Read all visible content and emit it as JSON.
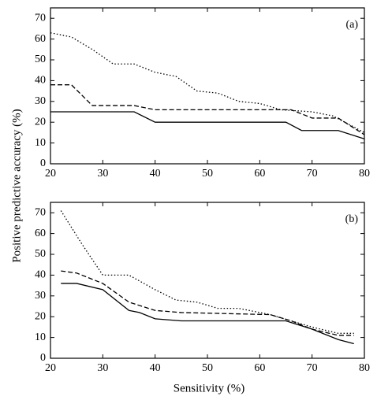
{
  "chart_data": [
    {
      "type": "line",
      "panel_label": "(a)",
      "ylabel": "Positive predictive accuracy (%)",
      "xlim": [
        20,
        80
      ],
      "ylim": [
        0,
        75
      ],
      "xticks": [
        20,
        30,
        40,
        50,
        60,
        70,
        80
      ],
      "yticks": [
        0,
        10,
        20,
        30,
        40,
        50,
        60,
        70
      ],
      "series": [
        {
          "color": "#000000",
          "dash": "solid",
          "x": [
            20,
            36,
            40,
            65,
            68,
            75,
            80
          ],
          "values": [
            25,
            25,
            20,
            20,
            16,
            16,
            12
          ]
        },
        {
          "color": "#000000",
          "dash": "dashed",
          "x": [
            20,
            24,
            28,
            36,
            40,
            66,
            70,
            75,
            80
          ],
          "values": [
            38,
            38,
            28,
            28,
            26,
            26,
            22,
            22,
            14
          ]
        },
        {
          "color": "#000000",
          "dash": "dotted",
          "x": [
            20,
            24,
            28,
            32,
            36,
            40,
            44,
            48,
            52,
            56,
            60,
            64,
            70,
            74,
            80
          ],
          "values": [
            63,
            61,
            55,
            48,
            48,
            44,
            42,
            35,
            34,
            30,
            29,
            26,
            25,
            23,
            15
          ]
        }
      ]
    },
    {
      "type": "line",
      "panel_label": "(b)",
      "xlabel": "Sensitivity (%)",
      "xlim": [
        20,
        80
      ],
      "ylim": [
        0,
        75
      ],
      "xticks": [
        20,
        30,
        40,
        50,
        60,
        70,
        80
      ],
      "yticks": [
        0,
        10,
        20,
        30,
        40,
        50,
        60,
        70
      ],
      "series": [
        {
          "color": "#000000",
          "dash": "solid",
          "x": [
            22,
            25,
            30,
            35,
            37,
            40,
            45,
            65,
            70,
            75,
            78
          ],
          "values": [
            36,
            36,
            33,
            23,
            22,
            19,
            18,
            18,
            14,
            9,
            7
          ]
        },
        {
          "color": "#000000",
          "dash": "dashed",
          "x": [
            22,
            25,
            30,
            35,
            40,
            45,
            62,
            66,
            70,
            75,
            78
          ],
          "values": [
            42,
            41,
            36,
            27,
            23,
            22,
            21,
            18,
            14,
            11,
            11
          ]
        },
        {
          "color": "#000000",
          "dash": "dotted",
          "x": [
            22,
            26,
            30,
            35,
            40,
            44,
            48,
            52,
            56,
            62,
            66,
            70,
            75,
            78
          ],
          "values": [
            71,
            55,
            40,
            40,
            33,
            28,
            27,
            24,
            24,
            21,
            18,
            15,
            12,
            12
          ]
        }
      ]
    }
  ]
}
